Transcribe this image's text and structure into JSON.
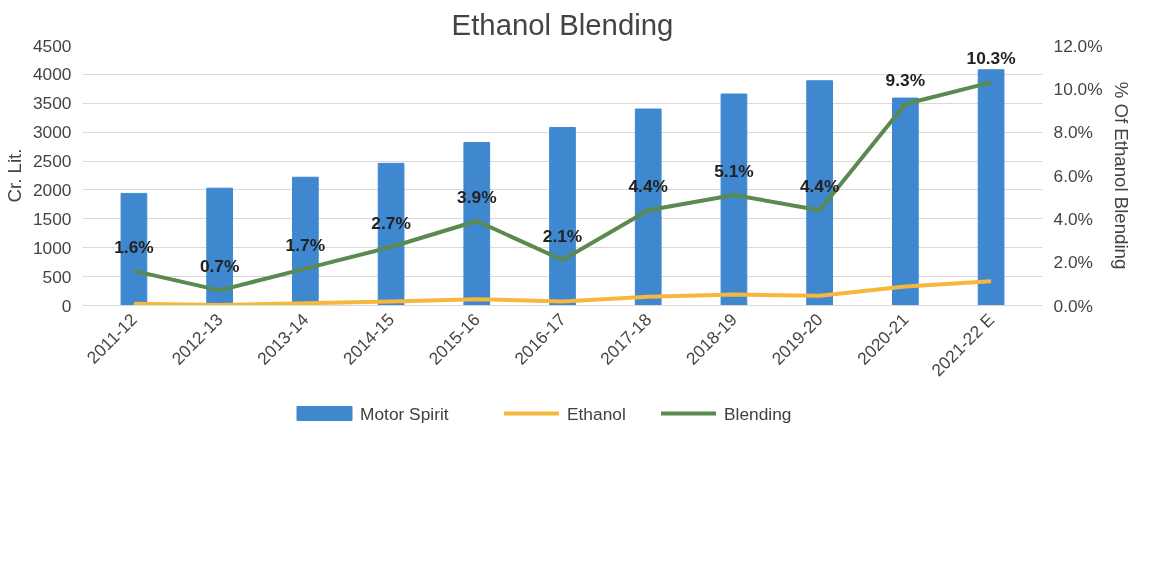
{
  "chart_data": {
    "type": "bar",
    "title": "Ethanol Blending",
    "ylabel": "Cr. Lit.",
    "y2label": "% Of Ethanol Blending",
    "categories": [
      "2011-12",
      "2012-13",
      "2013-14",
      "2014-15",
      "2015-16",
      "2016-17",
      "2017-18",
      "2018-19",
      "2019-20",
      "2020-21",
      "2021-22 E"
    ],
    "series": [
      {
        "name": "Motor Spirit",
        "color": "#3f88d0",
        "values": [
          1940,
          2030,
          2220,
          2460,
          2820,
          3080,
          3400,
          3660,
          3890,
          3590,
          4080
        ]
      },
      {
        "name": "Ethanol",
        "type": "line",
        "color": "#f5b83d",
        "values": [
          30,
          10,
          40,
          70,
          110,
          70,
          150,
          190,
          170,
          330,
          420
        ]
      },
      {
        "name": "Blending",
        "type": "line",
        "axis": "y2",
        "color": "#5a8a4f",
        "values": [
          1.6,
          0.7,
          1.7,
          2.7,
          3.9,
          2.1,
          4.4,
          5.1,
          4.4,
          9.3,
          10.3
        ],
        "value_labels": [
          "1.6%",
          "0.7%",
          "1.7%",
          "2.7%",
          "3.9%",
          "2.1%",
          "4.4%",
          "5.1%",
          "4.4%",
          "9.3%",
          "10.3%"
        ]
      }
    ],
    "ylim": [
      0,
      4500
    ],
    "yticks": [
      0,
      500,
      1000,
      1500,
      2000,
      2500,
      3000,
      3500,
      4000,
      4500
    ],
    "y2lim": [
      0,
      12
    ],
    "y2ticks": [
      {
        "value": 0,
        "label": "0.0%"
      },
      {
        "value": 2,
        "label": "2.0%"
      },
      {
        "value": 4,
        "label": "4.0%"
      },
      {
        "value": 6,
        "label": "6.0%"
      },
      {
        "value": 8,
        "label": "8.0%"
      },
      {
        "value": 10,
        "label": "10.0%"
      },
      {
        "value": 12,
        "label": "12.0%"
      }
    ],
    "grid": "y",
    "legend": "bottom",
    "marker": "none",
    "line_style": "solid"
  }
}
